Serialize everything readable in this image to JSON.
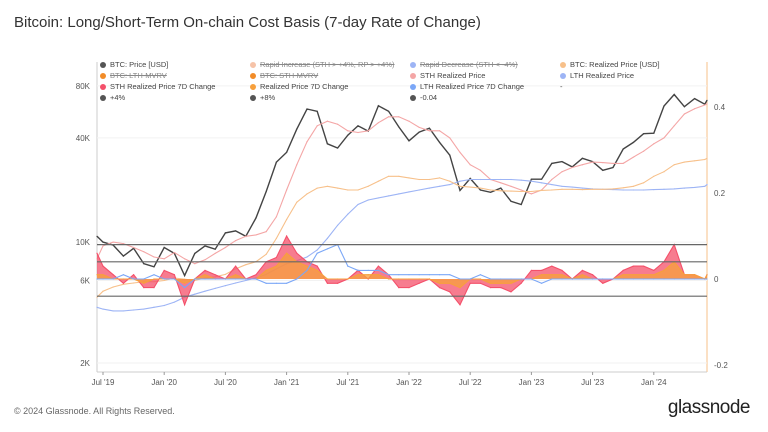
{
  "title": "Bitcoin: Long/Short-Term On-chain Cost Basis (7-day Rate of Change)",
  "footer": "© 2024 Glassnode. All Rights Reserved.",
  "logo": "glassnode",
  "chart_data": {
    "type": "line",
    "title": "Bitcoin: Long/Short-Term On-chain Cost Basis (7-day Rate of Change)",
    "legend": [
      {
        "label": "BTC: Price [USD]",
        "color": "#555555",
        "enabled": true
      },
      {
        "label": "Rapid Increase (STH > +4%, RP > +4%)",
        "color": "#f6c3a8",
        "enabled": false
      },
      {
        "label": "Rapid Decrease (STH < -4%)",
        "color": "#9db4f5",
        "enabled": false
      },
      {
        "label": "BTC: Realized Price [USD]",
        "color": "#f7c08a",
        "enabled": true
      },
      {
        "label": "BTC: LTH-MVRV",
        "color": "#f28c28",
        "enabled": false
      },
      {
        "label": "BTC: STH-MVRV",
        "color": "#f28c28",
        "enabled": false
      },
      {
        "label": "STH Realized Price",
        "color": "#f4a6a6",
        "enabled": true
      },
      {
        "label": "LTH Realized Price",
        "color": "#9db4f5",
        "enabled": true
      },
      {
        "label": "STH Realized Price 7D Change",
        "color": "#f4506a",
        "enabled": true
      },
      {
        "label": "Realized Price 7D Change",
        "color": "#f7a03c",
        "enabled": true
      },
      {
        "label": "LTH Realized Price 7D Change",
        "color": "#7ba7f7",
        "enabled": true
      },
      {
        "label": "-",
        "color": "#999999",
        "enabled": true
      },
      {
        "label": "+4%",
        "color": "#555555",
        "enabled": true
      },
      {
        "label": "+8%",
        "color": "#555555",
        "enabled": true
      },
      {
        "label": "-0.04",
        "color": "#555555",
        "enabled": true
      }
    ],
    "x_ticks": [
      "Jul '19",
      "Jan '20",
      "Jul '20",
      "Jan '21",
      "Jul '21",
      "Jan '22",
      "Jul '22",
      "Jan '23",
      "Jul '23",
      "Jan '24"
    ],
    "y_left": {
      "scale": "log",
      "ticks": [
        "2K",
        "6K",
        "10K",
        "40K",
        "80K"
      ],
      "tick_values": [
        2000,
        6000,
        10000,
        40000,
        80000
      ]
    },
    "y_right": {
      "ticks": [
        "-0.2",
        "0",
        "0.2",
        "0.4"
      ],
      "tick_values": [
        -0.2,
        0,
        0.2,
        0.4
      ],
      "ylim": [
        -0.2,
        0.4
      ]
    },
    "x_start": "2019-06",
    "x_end": "2024-07",
    "x_step": "month",
    "hlines": [
      {
        "name": "+8%",
        "value": 0.08
      },
      {
        "name": "+4%",
        "value": 0.04
      },
      {
        "name": "-0.04",
        "value": -0.04
      }
    ],
    "series": [
      {
        "name": "BTC: Price [USD]",
        "axis": "left",
        "color": "#444444",
        "values": [
          10800,
          10000,
          9600,
          8300,
          9200,
          7500,
          7200,
          9300,
          8600,
          6400,
          8600,
          9500,
          9100,
          11300,
          11600,
          10800,
          13800,
          19600,
          29000,
          33000,
          45000,
          58800,
          57000,
          37000,
          35000,
          41500,
          47000,
          43800,
          61300,
          57000,
          46300,
          38500,
          43200,
          45500,
          37700,
          31800,
          19900,
          23300,
          20000,
          19400,
          20500,
          17200,
          16500,
          23100,
          23100,
          28500,
          29200,
          27200,
          30500,
          29200,
          26000,
          27000,
          34500,
          37700,
          42300,
          42600,
          61200,
          71300,
          60600,
          67500,
          62700,
          66000
        ]
      },
      {
        "name": "STH Realized Price",
        "axis": "left",
        "color": "#f4a6a6",
        "values": [
          8000,
          9500,
          10000,
          9800,
          9300,
          8800,
          8200,
          8000,
          8700,
          8000,
          7500,
          7900,
          8600,
          9300,
          10200,
          10800,
          11000,
          11500,
          14000,
          20000,
          28000,
          38000,
          47000,
          50000,
          48000,
          44000,
          43000,
          44000,
          49000,
          53000,
          53000,
          50000,
          46000,
          44000,
          44000,
          40000,
          33000,
          28000,
          26000,
          23000,
          22000,
          21000,
          20000,
          19000,
          20000,
          23000,
          25500,
          27000,
          28000,
          29000,
          28800,
          28500,
          28500,
          31000,
          33500,
          37000,
          40000,
          47000,
          55000,
          59000,
          62000,
          63000
        ]
      },
      {
        "name": "LTH Realized Price",
        "axis": "left",
        "color": "#9db4f5",
        "values": [
          4200,
          4100,
          4000,
          4000,
          4050,
          4100,
          4200,
          4300,
          4500,
          4800,
          5000,
          5200,
          5400,
          5600,
          5800,
          6000,
          6200,
          6500,
          7000,
          7500,
          7800,
          8200,
          9000,
          10500,
          12500,
          14500,
          16500,
          17500,
          18000,
          18500,
          19000,
          19500,
          20000,
          20500,
          21000,
          21500,
          22500,
          23000,
          23000,
          23000,
          23000,
          23000,
          22800,
          22500,
          22000,
          21500,
          21000,
          20800,
          20500,
          20300,
          20200,
          20100,
          20000,
          20000,
          20000,
          20100,
          20200,
          20300,
          20500,
          20700,
          21000,
          21500
        ]
      },
      {
        "name": "BTC: Realized Price [USD]",
        "axis": "left",
        "color": "#f7c08a",
        "values": [
          4800,
          5200,
          5500,
          5700,
          5800,
          5900,
          5900,
          6000,
          6200,
          6100,
          6000,
          6200,
          6300,
          6500,
          7000,
          7400,
          7700,
          8500,
          10500,
          13500,
          17000,
          19000,
          20500,
          21000,
          20500,
          20000,
          20000,
          21000,
          22500,
          24000,
          24000,
          23500,
          23000,
          23000,
          23500,
          22500,
          21000,
          20800,
          20500,
          20000,
          19800,
          19700,
          19600,
          19600,
          19900,
          20000,
          20200,
          20200,
          20100,
          20200,
          20200,
          20300,
          20600,
          21000,
          22000,
          24000,
          25500,
          28000,
          29000,
          29500,
          30000,
          30500
        ]
      },
      {
        "name": "STH Realized Price 7D Change",
        "axis": "right",
        "color": "#f4506a",
        "fill": true,
        "values": [
          0.06,
          0.03,
          0.01,
          -0.01,
          0.01,
          -0.02,
          -0.02,
          0.02,
          0.01,
          -0.06,
          0.0,
          0.02,
          0.01,
          0.0,
          0.03,
          0.0,
          0.01,
          0.04,
          0.05,
          0.1,
          0.06,
          0.04,
          0.03,
          -0.01,
          -0.01,
          0.0,
          0.02,
          0.0,
          0.03,
          0.01,
          -0.02,
          -0.02,
          -0.01,
          0.0,
          -0.02,
          -0.03,
          -0.06,
          -0.01,
          -0.01,
          -0.02,
          -0.02,
          -0.03,
          -0.01,
          0.02,
          0.02,
          0.03,
          0.02,
          0.0,
          0.02,
          0.01,
          -0.01,
          0.0,
          0.02,
          0.03,
          0.03,
          0.02,
          0.04,
          0.08,
          0.01,
          0.01,
          0.0,
          0.01
        ]
      },
      {
        "name": "Realized Price 7D Change",
        "axis": "right",
        "color": "#f7a03c",
        "fill": true,
        "values": [
          0.01,
          0.01,
          0,
          0,
          0,
          -0.01,
          0,
          0,
          0,
          -0.01,
          0,
          0.01,
          0,
          0,
          0.01,
          0,
          0,
          0.02,
          0.03,
          0.06,
          0.04,
          0.03,
          0.02,
          0,
          0,
          0,
          0.01,
          0.01,
          0.01,
          0,
          0,
          0,
          0,
          0,
          -0.01,
          -0.01,
          -0.02,
          0,
          0,
          -0.01,
          -0.01,
          -0.01,
          0,
          0,
          0.01,
          0.01,
          0.01,
          0,
          0.01,
          0,
          0,
          0,
          0.01,
          0.01,
          0.01,
          0.01,
          0.02,
          0.04,
          0.01,
          0.01,
          0,
          0.01
        ]
      },
      {
        "name": "LTH Realized Price 7D Change",
        "axis": "right",
        "color": "#7ba7f7",
        "values": [
          0,
          0,
          0,
          0.01,
          0,
          0,
          0.01,
          0,
          0,
          -0.02,
          0,
          0,
          0,
          0,
          0,
          0,
          0,
          -0.01,
          -0.01,
          -0.01,
          0,
          0.02,
          0.06,
          0.07,
          0.08,
          0.03,
          0.02,
          0.02,
          0.02,
          0.01,
          0.01,
          0.01,
          0.01,
          0.01,
          0.01,
          0.01,
          0,
          0,
          0.01,
          0,
          0,
          0,
          0,
          0,
          -0.01,
          0,
          0,
          0,
          0,
          0,
          0,
          0,
          0,
          0,
          0,
          0,
          0,
          0,
          0,
          0,
          0,
          0
        ]
      }
    ]
  }
}
